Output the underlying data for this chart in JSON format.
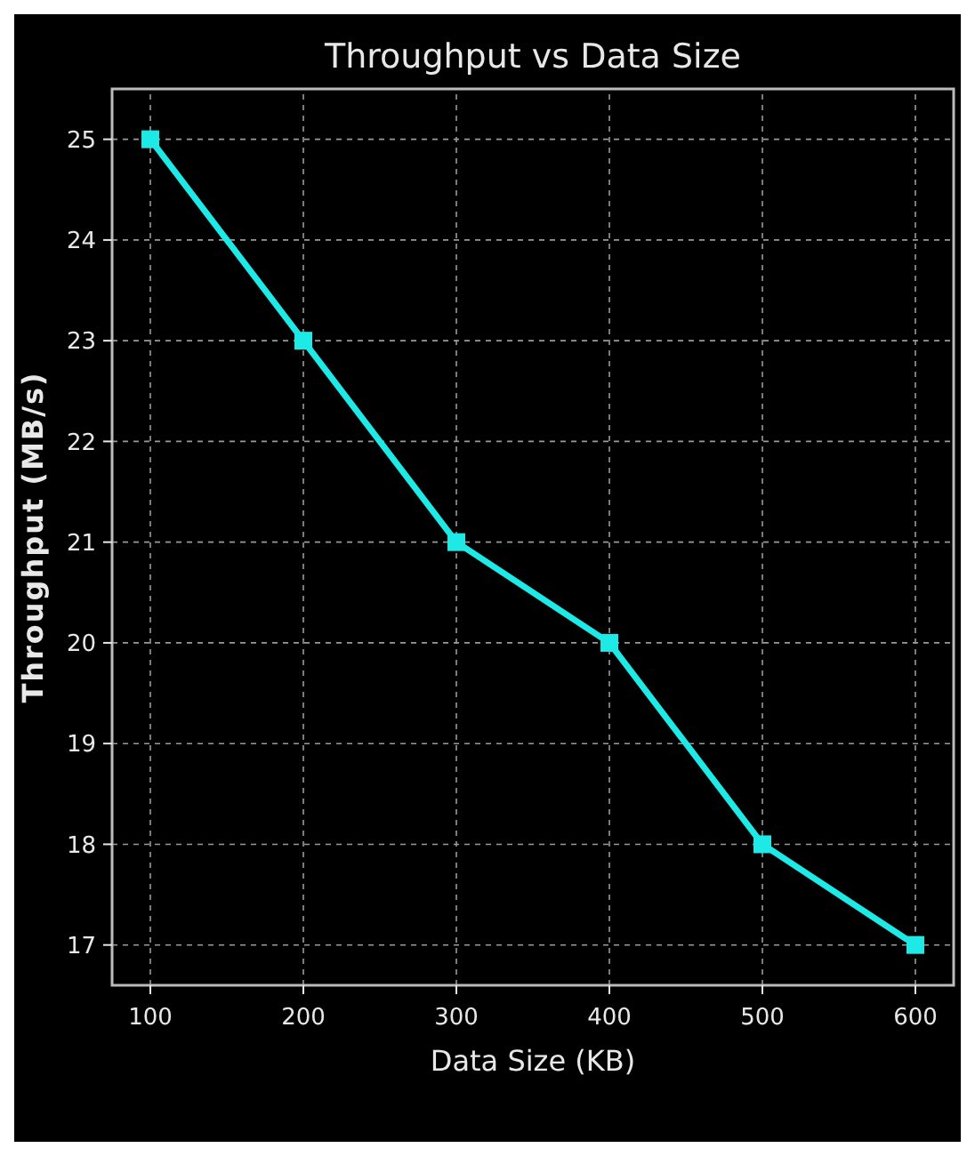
{
  "chart_data": {
    "type": "line",
    "title": "Throughput vs Data Size",
    "xlabel": "Data Size (KB)",
    "ylabel": "Throughput (MB/s)",
    "x": [
      100,
      200,
      300,
      400,
      500,
      600
    ],
    "series": [
      {
        "color": "#1de9e6",
        "values": [
          25,
          23,
          21,
          20,
          18,
          17
        ]
      }
    ],
    "xlim": [
      75,
      625
    ],
    "xticks": [
      100,
      200,
      300,
      400,
      500,
      600
    ],
    "ylim": [
      16.6,
      25.5
    ],
    "yticks": [
      17,
      18,
      19,
      20,
      21,
      22,
      23,
      24,
      25
    ],
    "grid": true,
    "marker": "square",
    "line_style": "solid"
  }
}
